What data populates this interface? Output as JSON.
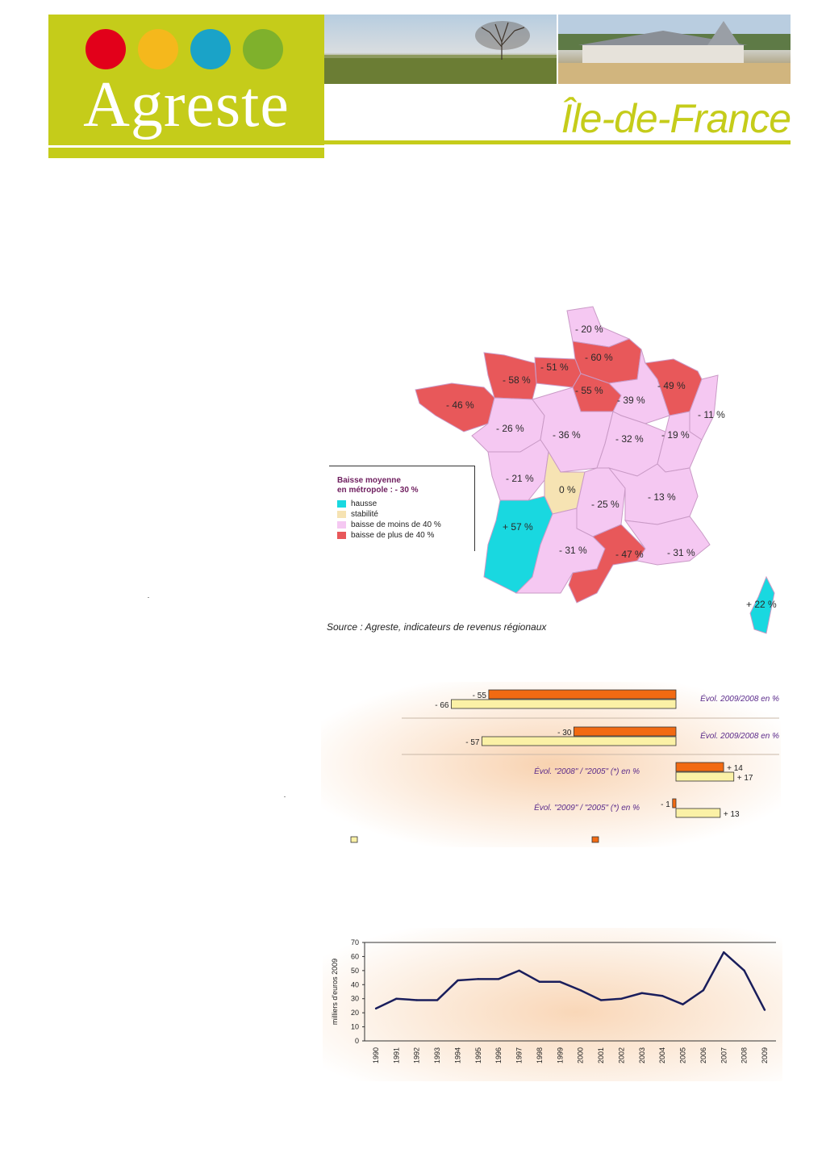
{
  "header": {
    "logo_text": "Agreste",
    "region": "Île-de-France",
    "dot_colors": [
      "#e2001a",
      "#f5b81c",
      "#1aa3c8",
      "#7fb12c"
    ],
    "brand_color": "#c5cc1a"
  },
  "map": {
    "legend": {
      "title_line1": "Baisse moyenne",
      "title_line2": "en métropole : - 30 %",
      "items": [
        {
          "label": "hausse",
          "color": "#19d8e0"
        },
        {
          "label": "stabilité",
          "color": "#f6e3b3"
        },
        {
          "label": "baisse de moins de 40 %",
          "color": "#f5c8f2"
        },
        {
          "label": "baisse de plus de 40 %",
          "color": "#e8585a"
        }
      ]
    },
    "regions": [
      {
        "name": "Nord-Pas-de-Calais",
        "value": "- 20 %"
      },
      {
        "name": "Picardie",
        "value": "- 60 %"
      },
      {
        "name": "Haute-Normandie",
        "value": "- 51 %"
      },
      {
        "name": "Basse-Normandie",
        "value": "- 58 %"
      },
      {
        "name": "Île-de-France",
        "value": "- 55 %"
      },
      {
        "name": "Champagne-Ardenne",
        "value": "- 39 %"
      },
      {
        "name": "Lorraine",
        "value": "- 49 %"
      },
      {
        "name": "Alsace",
        "value": "- 11 %"
      },
      {
        "name": "Bretagne",
        "value": "- 46 %"
      },
      {
        "name": "Pays de la Loire",
        "value": "- 26 %"
      },
      {
        "name": "Centre",
        "value": "- 36 %"
      },
      {
        "name": "Bourgogne",
        "value": "- 32 %"
      },
      {
        "name": "Franche-Comté",
        "value": "- 19 %"
      },
      {
        "name": "Poitou-Charentes",
        "value": "- 21 %"
      },
      {
        "name": "Limousin",
        "value": "0 %"
      },
      {
        "name": "Auvergne",
        "value": "- 25 %"
      },
      {
        "name": "Rhône-Alpes",
        "value": "- 13 %"
      },
      {
        "name": "Aquitaine",
        "value": "+ 57 %"
      },
      {
        "name": "Midi-Pyrénées",
        "value": "- 31 %"
      },
      {
        "name": "Languedoc-Roussillon",
        "value": "- 47 %"
      },
      {
        "name": "Provence-Alpes-Côte d'Azur",
        "value": "- 31 %"
      },
      {
        "name": "Corse",
        "value": "+ 22 %"
      }
    ],
    "source": "Source :   Agreste, indicateurs de revenus régionaux"
  },
  "chart_data": [
    {
      "type": "bar",
      "orientation": "horizontal",
      "categories": [
        "Évol. 2009/2008 en %",
        "Évol. 2009/2008 en %",
        "Évol. \"2008\" / \"2005\" (*) en %",
        "Évol. \"2009\" / \"2005\" (*) en %"
      ],
      "series": [
        {
          "color": "#f26a12",
          "values": [
            -55,
            -30,
            14,
            -1
          ],
          "labels": [
            "- 55",
            "- 30",
            "+ 14",
            "- 1"
          ]
        },
        {
          "color": "#fbf1a6",
          "values": [
            -66,
            -57,
            17,
            13
          ],
          "labels": [
            "- 66",
            "- 57",
            "+ 17",
            "+ 13"
          ]
        }
      ]
    },
    {
      "type": "line",
      "x": [
        "1990",
        "1991",
        "1992",
        "1993",
        "1994",
        "1995",
        "1996",
        "1997",
        "1998",
        "1999",
        "2000",
        "2001",
        "2002",
        "2003",
        "2004",
        "2005",
        "2006",
        "2007",
        "2008",
        "2009"
      ],
      "y": [
        23,
        30,
        29,
        29,
        43,
        44,
        44,
        50,
        42,
        42,
        36,
        29,
        30,
        34,
        32,
        26,
        36,
        63,
        50,
        22
      ],
      "ylabel": "milliers d'euros 2009",
      "ylim": [
        0,
        70
      ],
      "yticks": [
        "0",
        "10",
        "20",
        "30",
        "40",
        "50",
        "60",
        "70"
      ],
      "color": "#1a1e5c"
    }
  ]
}
